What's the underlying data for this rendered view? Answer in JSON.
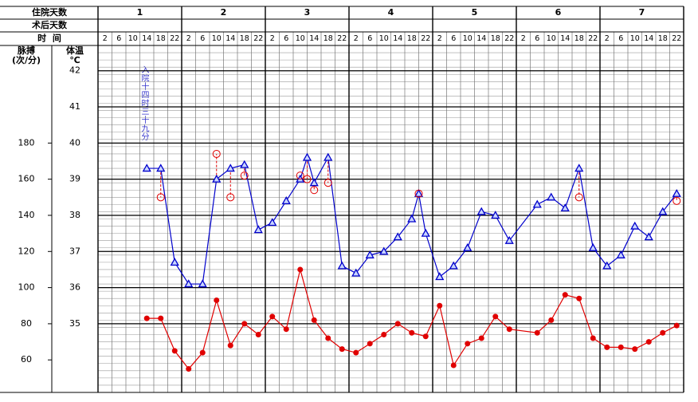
{
  "chart_data": {
    "type": "line",
    "header": {
      "admission_day_label": "住院天数",
      "postop_day_label": "术后天数",
      "time_label": "时  间",
      "pulse_label": [
        "脉搏",
        "(次/分)"
      ],
      "temp_label": [
        "体温",
        "℃"
      ]
    },
    "days": [
      1,
      2,
      3,
      4,
      5,
      6,
      7
    ],
    "time_labels": [
      2,
      6,
      10,
      14,
      18,
      22
    ],
    "annotation": "入院十四时三十九分",
    "xlim": [
      0,
      168
    ],
    "ylim": [
      33.1,
      42.7
    ],
    "yticks": [
      35,
      36,
      37,
      38,
      39,
      40,
      41,
      42
    ],
    "y2lim": [
      42,
      234
    ],
    "y2ticks": [
      60,
      80,
      100,
      120,
      140,
      160,
      180
    ],
    "grid": true,
    "series": [
      {
        "color": "#0000cc",
        "marker": "triangle",
        "axis": "y",
        "x": [
          14,
          18,
          22,
          26,
          30,
          34,
          38,
          42,
          46,
          50,
          54,
          58,
          60,
          62,
          66,
          70,
          74,
          78,
          82,
          86,
          90,
          92,
          94,
          98,
          102,
          106,
          110,
          114,
          118,
          126,
          130,
          134,
          138,
          142,
          146,
          150,
          154,
          158,
          162,
          166
        ],
        "values": [
          39.3,
          39.3,
          36.7,
          36.1,
          36.1,
          39.0,
          39.3,
          39.4,
          37.6,
          37.8,
          38.4,
          39.0,
          39.6,
          38.9,
          39.6,
          36.6,
          36.4,
          36.9,
          37.0,
          37.4,
          37.9,
          38.6,
          37.5,
          36.3,
          36.6,
          37.1,
          38.1,
          38.0,
          37.3,
          38.3,
          38.5,
          38.2,
          39.3,
          37.1,
          36.6,
          36.9,
          37.7,
          37.4,
          38.1,
          38.6
        ]
      },
      {
        "color": "#e00000",
        "marker": "dot",
        "axis": "y2",
        "x": [
          14,
          18,
          22,
          26,
          30,
          34,
          38,
          42,
          46,
          50,
          54,
          58,
          62,
          66,
          70,
          74,
          78,
          82,
          86,
          90,
          94,
          98,
          102,
          106,
          110,
          114,
          118,
          126,
          130,
          134,
          138,
          142,
          146,
          150,
          154,
          158,
          162,
          166
        ],
        "values": [
          83,
          83,
          65,
          55,
          64,
          93,
          68,
          80,
          74,
          84,
          77,
          110,
          82,
          72,
          66,
          64,
          69,
          74,
          80,
          75,
          73,
          90,
          57,
          69,
          72,
          84,
          77,
          75,
          82,
          96,
          94,
          72,
          67,
          67,
          66,
          70,
          75,
          79
        ]
      },
      {
        "color": "#e00000",
        "marker": "circle",
        "axis": "y",
        "drop_lines": true,
        "x": [
          18,
          34,
          38,
          42,
          58,
          60,
          62,
          66,
          92,
          138,
          166
        ],
        "values": [
          38.5,
          39.7,
          38.5,
          39.1,
          39.1,
          39.0,
          38.7,
          38.9,
          38.6,
          38.5,
          38.4
        ]
      }
    ]
  }
}
